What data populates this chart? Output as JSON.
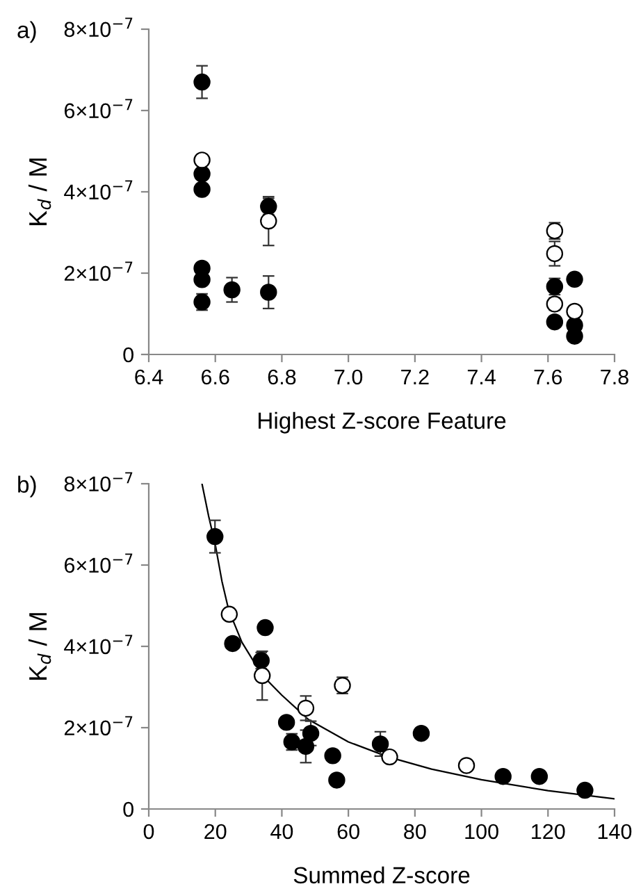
{
  "chart_data": [
    {
      "type": "scatter",
      "title": "a)",
      "xlabel": "Highest Z-score Feature",
      "ylabel": "K$_{d}$ / M",
      "xlim": [
        6.4,
        7.8
      ],
      "xticks": [
        {
          "value": 6.4,
          "label": "6.4"
        },
        {
          "value": 6.6,
          "label": "6.6"
        },
        {
          "value": 6.8,
          "label": "6.8"
        },
        {
          "value": 7.0,
          "label": "7.0"
        },
        {
          "value": 7.2,
          "label": "7.2"
        },
        {
          "value": 7.4,
          "label": "7.4"
        },
        {
          "value": 7.6,
          "label": "7.6"
        },
        {
          "value": 7.8,
          "label": "7.8"
        }
      ],
      "ylim": [
        0,
        8e-07
      ],
      "yticks": [
        0,
        {
          "value": 2e-07,
          "label": "2×10$^{−7}$"
        },
        {
          "value": 4e-07,
          "label": "4×10$^{−7}$"
        },
        {
          "value": 6e-07,
          "label": "6×10$^{−7}$"
        },
        {
          "value": 8e-07,
          "label": "8×10$^{−7}$"
        }
      ],
      "marker": "circle",
      "grid": false,
      "legend": false,
      "series": [
        {
          "color": "#000000",
          "x": [
            6.56,
            6.56,
            6.56,
            6.56,
            6.56,
            6.56,
            6.65,
            6.76,
            6.76,
            7.62,
            7.62,
            7.68,
            7.68,
            7.68
          ],
          "values": [
            6.7e-07,
            4.44e-07,
            4.06e-07,
            2.12e-07,
            1.84e-07,
            1.29e-07,
            1.59e-07,
            3.64e-07,
            1.53e-07,
            1.67e-07,
            8e-08,
            1.85e-07,
            7.2e-08,
            4.5e-08
          ],
          "errors": [
            4e-08,
            null,
            null,
            null,
            null,
            2e-08,
            3e-08,
            2e-08,
            4e-08,
            2e-08,
            null,
            null,
            null,
            null
          ]
        },
        {
          "color": "#ffffff",
          "x": [
            6.56,
            6.76,
            7.62,
            7.62,
            7.62,
            7.68
          ],
          "values": [
            4.78e-07,
            3.28e-07,
            3.04e-07,
            2.48e-07,
            1.24e-07,
            1.06e-07
          ],
          "errors": [
            null,
            6e-08,
            2e-08,
            3e-08,
            1.5e-08,
            null
          ]
        }
      ]
    },
    {
      "type": "scatter",
      "title": "b)",
      "xlabel": "Summed Z-score",
      "ylabel": "K$_{d}$ / M",
      "xlim": [
        0,
        140
      ],
      "xticks": [
        0,
        20,
        40,
        60,
        80,
        100,
        120,
        140
      ],
      "ylim": [
        0,
        8e-07
      ],
      "yticks": [
        0,
        {
          "value": 2e-07,
          "label": "2×10$^{−7}$"
        },
        {
          "value": 4e-07,
          "label": "4×10$^{−7}$"
        },
        {
          "value": 6e-07,
          "label": "6×10$^{−7}$"
        },
        {
          "value": 8e-07,
          "label": "8×10$^{−7}$"
        }
      ],
      "marker": "circle",
      "grid": false,
      "legend": false,
      "series": [
        {
          "color": "#000000",
          "x": [
            19.9,
            25.2,
            33.8,
            35.0,
            41.4,
            43.0,
            47.2,
            48.7,
            55.3,
            56.5,
            69.6,
            81.9,
            106.5,
            117.4,
            131.1
          ],
          "values": [
            6.7e-07,
            4.07e-07,
            3.65e-07,
            4.46e-07,
            2.13e-07,
            1.65e-07,
            1.54e-07,
            1.86e-07,
            1.31e-07,
            7.1e-08,
            1.6e-07,
            1.86e-07,
            8e-08,
            8e-08,
            4.6e-08
          ],
          "errors": [
            4e-08,
            null,
            2e-08,
            null,
            null,
            2e-08,
            4e-08,
            3e-08,
            null,
            null,
            3e-08,
            null,
            null,
            null,
            null
          ]
        },
        {
          "color": "#ffffff",
          "x": [
            24.2,
            34.1,
            47.2,
            58.2,
            72.4,
            95.5
          ],
          "values": [
            4.79e-07,
            3.28e-07,
            2.48e-07,
            3.04e-07,
            1.28e-07,
            1.07e-07
          ],
          "errors": [
            null,
            6e-08,
            3e-08,
            2e-08,
            null,
            null
          ]
        },
        {
          "type": "line",
          "color": "#000000",
          "marker": "none",
          "x": [
            16,
            18,
            20,
            22,
            24,
            28,
            34,
            40,
            48,
            60,
            72,
            85,
            100,
            120,
            140
          ],
          "values": [
            8e-07,
            7.2e-07,
            6.5e-07,
            5.6e-07,
            4.9e-07,
            4.1e-07,
            3.3e-07,
            2.8e-07,
            2.2e-07,
            1.65e-07,
            1.28e-07,
            9.8e-08,
            7.2e-08,
            4.5e-08,
            2.5e-08
          ]
        }
      ]
    }
  ]
}
